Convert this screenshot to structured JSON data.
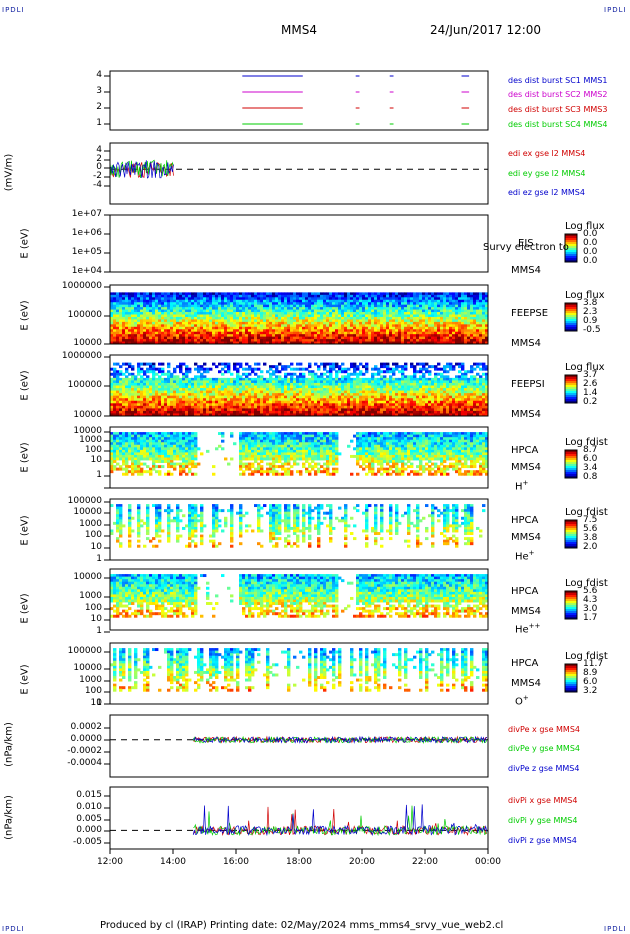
{
  "corners": {
    "tl": "IPDLI",
    "tr": "IPDLI",
    "bl": "IPDLI",
    "br": "IPDLI"
  },
  "header": {
    "spacecraft": "MMS4",
    "datetime": "24/Jun/2017 12:00"
  },
  "footer": {
    "text": "Produced by cl (IRAP)   Printing date: 02/May/2024   mms_mms4_srvy_vue_web2.cl"
  },
  "colors": {
    "red": "#d00000",
    "green": "#00cc00",
    "blue": "#0000cc",
    "magenta": "#cc00cc"
  },
  "chart_data": [
    {
      "type": "line",
      "id": "burst",
      "x_tick_labels": [
        "12:00",
        "14:00",
        "16:00",
        "18:00",
        "20:00",
        "22:00",
        "00:00"
      ],
      "y_ticks": [
        "4",
        "3",
        "2",
        "1"
      ],
      "legend": [
        "des dist burst SC1 MMS1",
        "des dist burst SC2 MMS2",
        "des dist burst SC3 MMS3",
        "des dist burst SC4 MMS4"
      ],
      "series_colors": [
        "#0000cc",
        "#cc00cc",
        "#d00000",
        "#00cc00"
      ]
    },
    {
      "type": "line",
      "id": "edi",
      "ylabel": "(mV/m)",
      "y_ticks": [
        "4",
        "2",
        "0",
        "-2",
        "-4"
      ],
      "ylim": [
        -5,
        5
      ],
      "legend": [
        "edi ex gse l2 MMS4",
        "edi ey gse l2 MMS4",
        "edi ez gse l2 MMS4"
      ]
    },
    {
      "type": "heatmap",
      "id": "eis",
      "ylabel": "E (eV)",
      "y_ticks": [
        "1e+07",
        "1e+06",
        "1e+05",
        "1e+04"
      ],
      "instrument": "EIS",
      "overlay_text": "Survy electron to",
      "sc": "MMS4",
      "cb_title": "Log flux",
      "cb_values": [
        "0.0",
        "0.0",
        "0.0",
        "0.0"
      ]
    },
    {
      "type": "heatmap",
      "id": "feepse",
      "ylabel": "E (eV)",
      "y_ticks": [
        "1000000",
        "100000",
        "10000"
      ],
      "instrument": "FEEPSE",
      "sc": "MMS4",
      "cb_title": "Log flux",
      "cb_values": [
        "3.8",
        "2.3",
        "0.9",
        "-0.5"
      ]
    },
    {
      "type": "heatmap",
      "id": "feepsi",
      "ylabel": "E (eV)",
      "y_ticks": [
        "1000000",
        "100000",
        "10000"
      ],
      "instrument": "FEEPSI",
      "sc": "MMS4",
      "cb_title": "Log flux",
      "cb_values": [
        "3.7",
        "2.6",
        "1.4",
        "0.2"
      ]
    },
    {
      "type": "heatmap",
      "id": "hpca_h",
      "ylabel": "E (eV)",
      "y_ticks": [
        "10000",
        "1000",
        "100",
        "10",
        "1"
      ],
      "instrument": "HPCA",
      "sc": "MMS4",
      "species": "H",
      "charge": "+",
      "cb_title": "Log fdist",
      "cb_values": [
        "8.7",
        "6.0",
        "3.4",
        "0.8"
      ]
    },
    {
      "type": "heatmap",
      "id": "hpca_he",
      "ylabel": "E (eV)",
      "y_ticks": [
        "100000",
        "10000",
        "1000",
        "100",
        "10",
        "1"
      ],
      "instrument": "HPCA",
      "sc": "MMS4",
      "species": "He",
      "charge": "+",
      "cb_title": "Log fdist",
      "cb_values": [
        "7.5",
        "5.6",
        "3.8",
        "2.0"
      ]
    },
    {
      "type": "heatmap",
      "id": "hpca_hepp",
      "ylabel": "E (eV)",
      "y_ticks": [
        "10000",
        "1000",
        "100",
        "10",
        "1"
      ],
      "instrument": "HPCA",
      "sc": "MMS4",
      "species": "He",
      "charge": "++",
      "cb_title": "Log fdist",
      "cb_values": [
        "5.6",
        "4.3",
        "3.0",
        "1.7"
      ]
    },
    {
      "type": "heatmap",
      "id": "hpca_o",
      "ylabel": "E (eV)",
      "y_ticks": [
        "100000",
        "10000",
        "1000",
        "100",
        "10",
        "1"
      ],
      "instrument": "HPCA",
      "sc": "MMS4",
      "species": "O",
      "charge": "+",
      "cb_title": "Log fdist",
      "cb_values": [
        "11.7",
        "8.9",
        "6.0",
        "3.2"
      ]
    },
    {
      "type": "line",
      "id": "divpe",
      "ylabel": "(nPa/km)",
      "y_ticks": [
        "0.0002",
        "0.0000",
        "-0.0002",
        "-0.0004"
      ],
      "ylim": [
        -0.0005,
        0.0003
      ],
      "legend": [
        "divPe x gse MMS4",
        "divPe y gse MMS4",
        "divPe z gse MMS4"
      ]
    },
    {
      "type": "line",
      "id": "divpi",
      "ylabel": "(nPa/km)",
      "y_ticks": [
        "0.015",
        "0.010",
        "0.005",
        "0.000",
        "-0.005"
      ],
      "ylim": [
        -0.007,
        0.018
      ],
      "legend": [
        "divPi x gse MMS4",
        "divPi y gse MMS4",
        "divPi z gse MMS4"
      ]
    }
  ]
}
